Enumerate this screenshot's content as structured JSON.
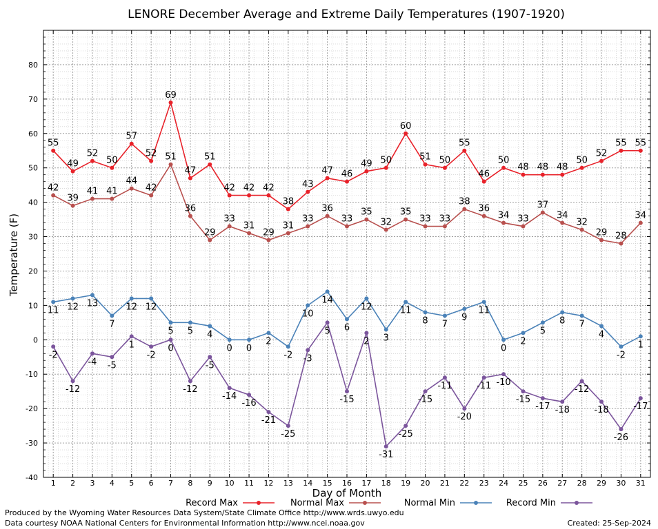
{
  "chart_data": {
    "type": "line",
    "title": "LENORE December Average and Extreme Daily Temperatures (1907-1920)",
    "xlabel": "Day of Month",
    "ylabel": "Temperature (F)",
    "ylim": [
      -40,
      90
    ],
    "yticks": [
      -40,
      -30,
      -20,
      -10,
      0,
      10,
      20,
      30,
      40,
      50,
      60,
      70,
      80
    ],
    "x": [
      1,
      2,
      3,
      4,
      5,
      6,
      7,
      8,
      9,
      10,
      11,
      12,
      13,
      14,
      15,
      16,
      17,
      18,
      19,
      20,
      21,
      22,
      23,
      24,
      25,
      26,
      27,
      28,
      29,
      30,
      31
    ],
    "grid": true,
    "legend_position": "bottom",
    "series": [
      {
        "name": "Record Max",
        "color": "#e8222a",
        "label_pos": "above",
        "values": [
          55,
          49,
          52,
          50,
          57,
          52,
          69,
          47,
          51,
          42,
          42,
          42,
          38,
          43,
          47,
          46,
          49,
          50,
          60,
          51,
          50,
          55,
          46,
          50,
          48,
          48,
          48,
          50,
          52,
          55,
          55
        ]
      },
      {
        "name": "Normal Max",
        "color": "#b8504e",
        "label_pos": "above",
        "values": [
          42,
          39,
          41,
          41,
          44,
          42,
          51,
          36,
          29,
          33,
          31,
          29,
          31,
          33,
          36,
          33,
          35,
          32,
          35,
          33,
          33,
          38,
          36,
          34,
          33,
          37,
          34,
          32,
          29,
          28,
          34
        ]
      },
      {
        "name": "Normal Min",
        "color": "#4a82b8",
        "label_pos": "below",
        "values": [
          11,
          12,
          13,
          7,
          12,
          12,
          5,
          5,
          4,
          0,
          0,
          2,
          -2,
          10,
          14,
          6,
          12,
          3,
          11,
          8,
          7,
          9,
          11,
          0,
          2,
          5,
          8,
          7,
          4,
          -2,
          1
        ]
      },
      {
        "name": "Record Min",
        "color": "#7b559c",
        "label_pos": "below",
        "values": [
          -2,
          -12,
          -4,
          -5,
          1,
          -2,
          0,
          -12,
          -5,
          -14,
          -16,
          -21,
          -25,
          -3,
          5,
          -15,
          2,
          -31,
          -25,
          -15,
          -11,
          -20,
          -11,
          -10,
          -15,
          -17,
          -18,
          -12,
          -18,
          -26,
          -17
        ]
      }
    ]
  },
  "footer": {
    "line1": "Produced by the Wyoming Water Resources Data System/State Climate Office http://www.wrds.uwyo.edu",
    "line2": "Data courtesy NOAA National Centers for Environmental Information http://www.ncei.noaa.gov",
    "created": "Created:  25-Sep-2024"
  }
}
